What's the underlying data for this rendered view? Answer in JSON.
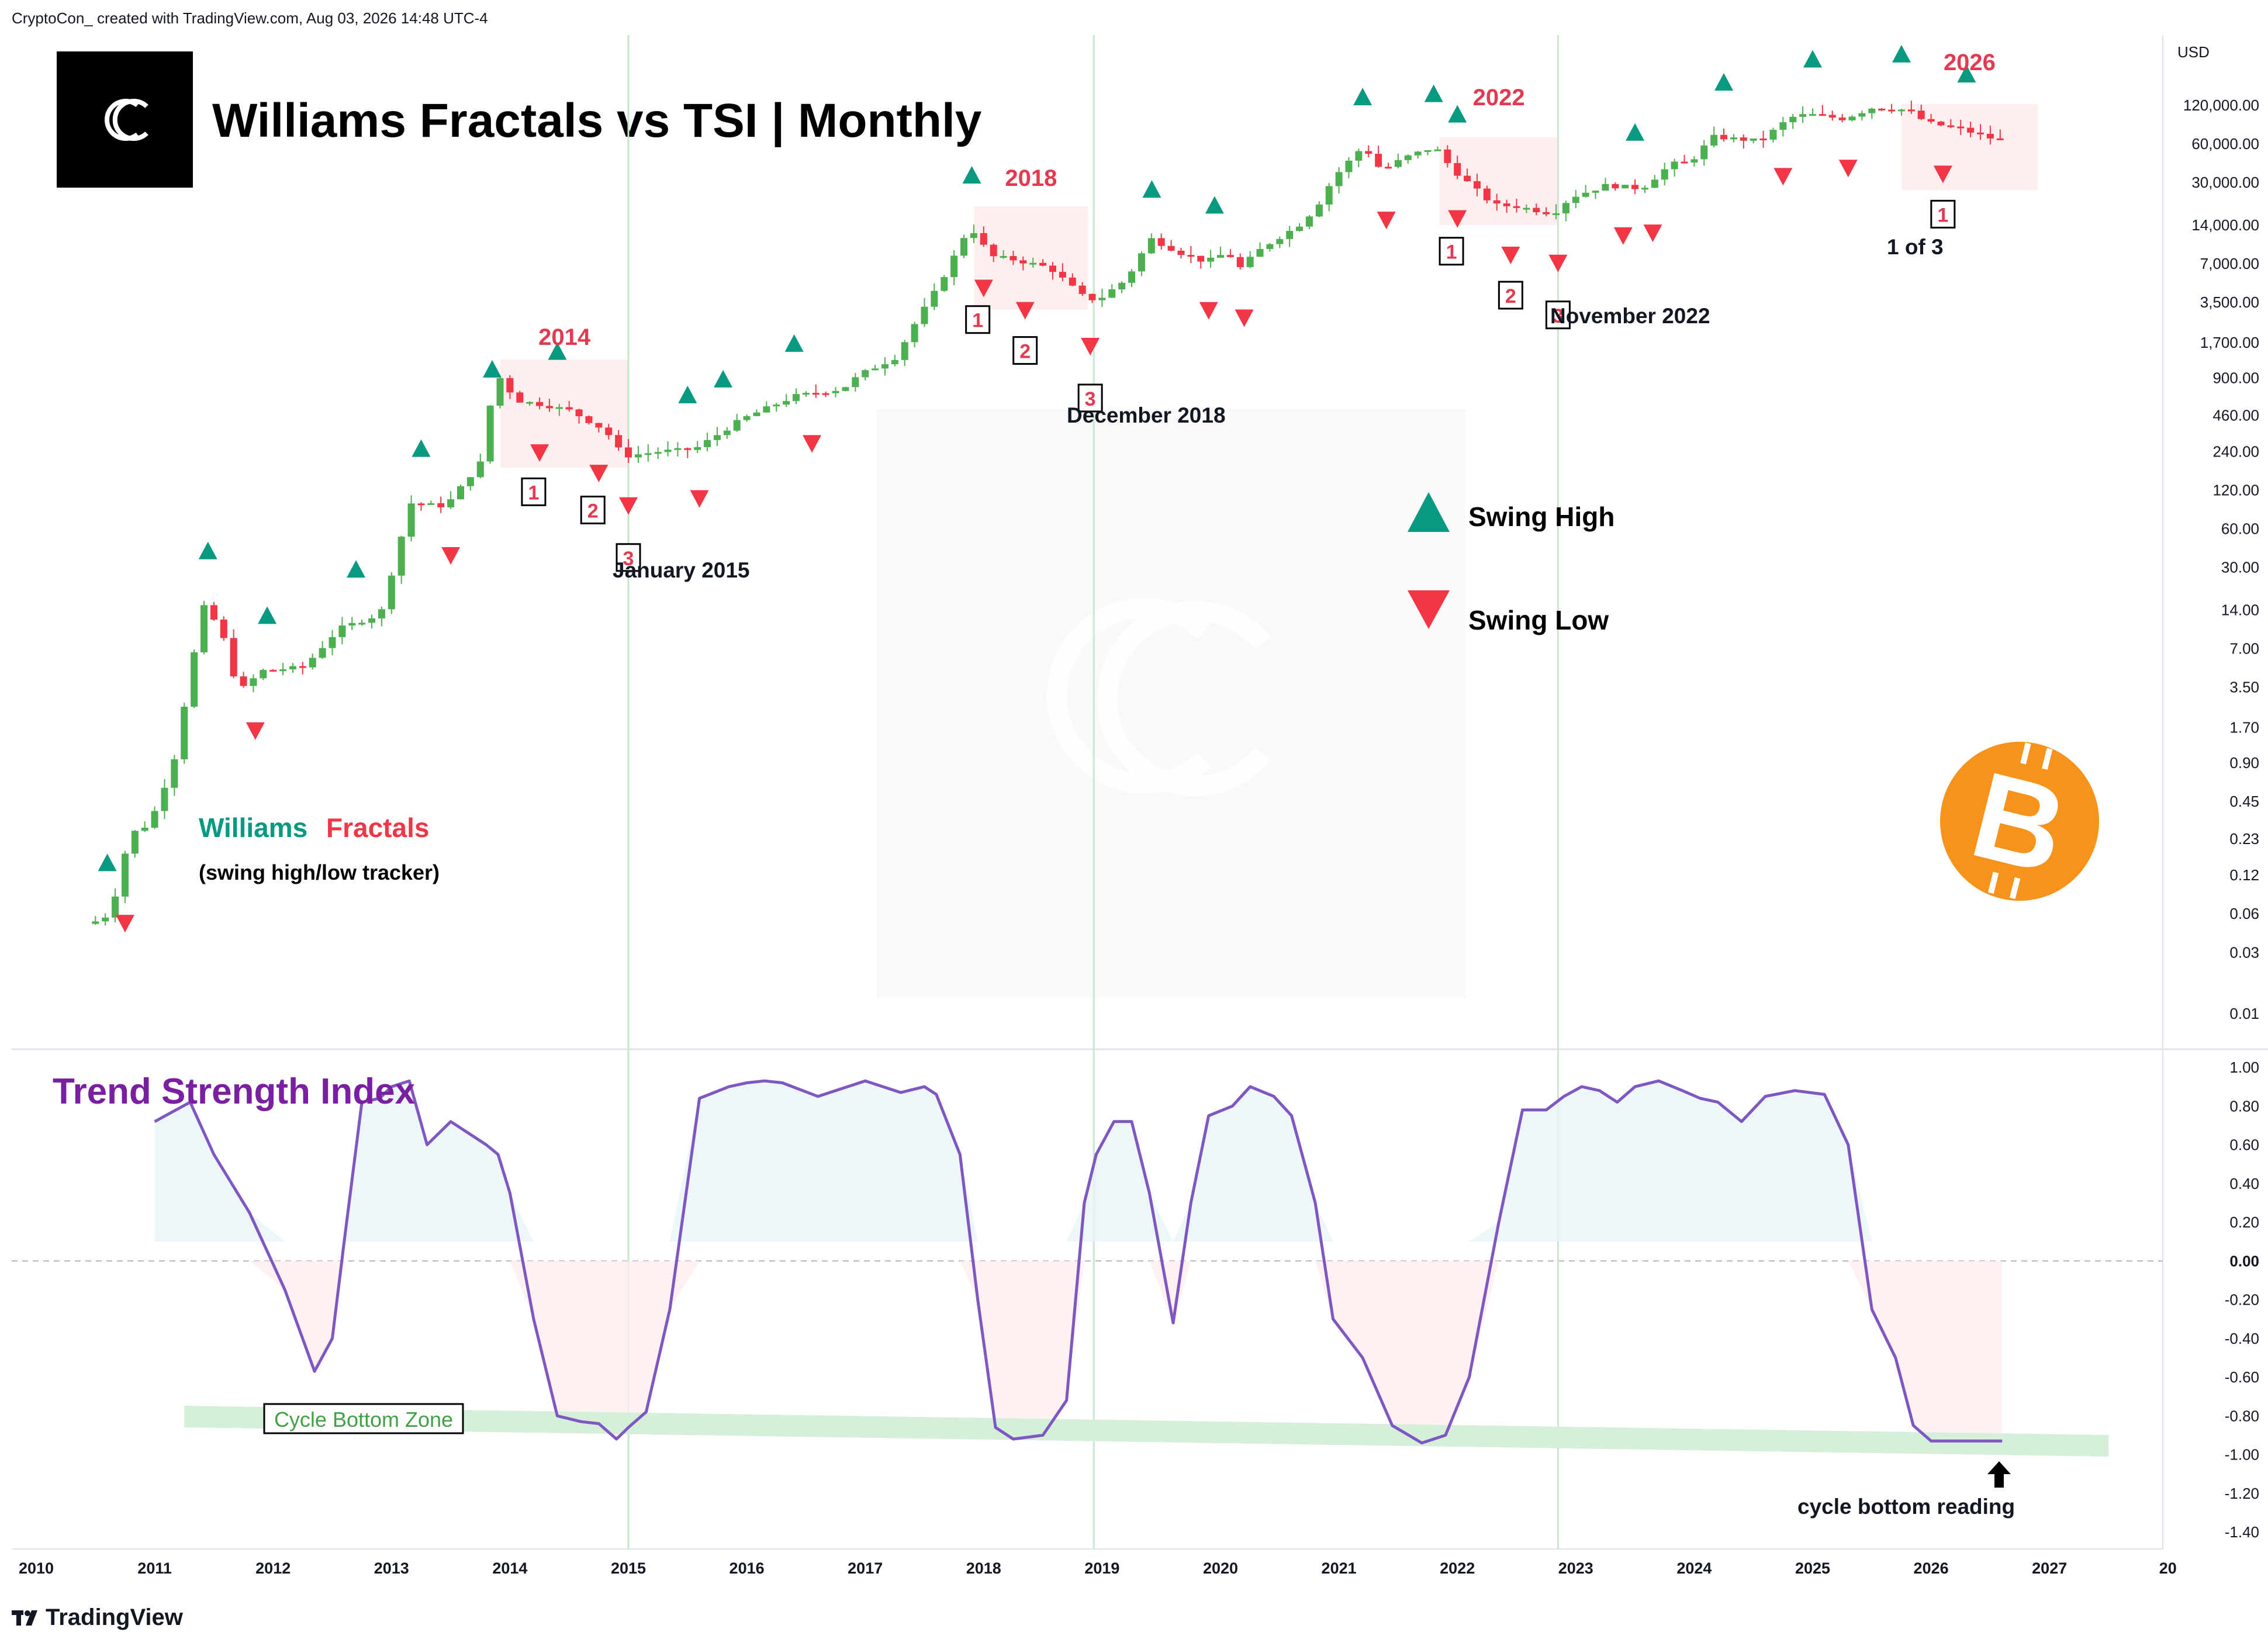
{
  "header": {
    "attribution": "CryptoCon_ created with TradingView.com, Aug 03, 2026 14:48 UTC-4"
  },
  "title": "Williams Fractals vs TSI | Monthly",
  "branding": {
    "footer": "TradingView",
    "watermark_icon": "cryptocon-logo-icon",
    "coin_icon": "bitcoin-icon"
  },
  "colors": {
    "up": "#4caf50",
    "down": "#f23645",
    "swing_high": "#089981",
    "swing_low": "#f23645",
    "tsi_line": "#7e57c2",
    "tsi_title": "#7b1fa2",
    "year_label": "#e53950",
    "bottom_zone": "#d6efd9",
    "bitcoin": "#f7931a"
  },
  "chart_data": [
    {
      "type": "candlestick",
      "title": "Williams Fractals vs TSI | Monthly",
      "y_scale": "log",
      "y_unit": "USD",
      "y_ticks": [
        "120,000.00",
        "60,000.00",
        "30,000.00",
        "14,000.00",
        "7,000.00",
        "3,500.00",
        "1,700.00",
        "900.00",
        "460.00",
        "240.00",
        "120.00",
        "60.00",
        "30.00",
        "14.00",
        "7.00",
        "3.50",
        "1.70",
        "0.90",
        "0.45",
        "0.23",
        "0.12",
        "0.06",
        "0.03",
        "0.01"
      ],
      "x_ticks": [
        "2010",
        "2011",
        "2012",
        "2013",
        "2014",
        "2015",
        "2016",
        "2017",
        "2018",
        "2019",
        "2020",
        "2021",
        "2022",
        "2023",
        "2024",
        "2025",
        "2026",
        "2027",
        "20"
      ],
      "price_keypoints": [
        [
          2010.5,
          0.05
        ],
        [
          2010.67,
          0.06
        ],
        [
          2010.83,
          0.25
        ],
        [
          2011.0,
          0.3
        ],
        [
          2011.2,
          0.9
        ],
        [
          2011.45,
          15
        ],
        [
          2011.6,
          10
        ],
        [
          2011.75,
          3.2
        ],
        [
          2011.95,
          4.7
        ],
        [
          2012.3,
          5
        ],
        [
          2012.6,
          10
        ],
        [
          2012.95,
          13
        ],
        [
          2013.2,
          95
        ],
        [
          2013.5,
          90
        ],
        [
          2013.8,
          200
        ],
        [
          2013.92,
          1000
        ],
        [
          2014.1,
          600
        ],
        [
          2014.35,
          550
        ],
        [
          2014.55,
          500
        ],
        [
          2014.85,
          350
        ],
        [
          2015.0,
          220
        ],
        [
          2015.3,
          240
        ],
        [
          2015.6,
          250
        ],
        [
          2015.85,
          350
        ],
        [
          2016.0,
          430
        ],
        [
          2016.45,
          650
        ],
        [
          2016.85,
          740
        ],
        [
          2017.0,
          960
        ],
        [
          2017.3,
          1300
        ],
        [
          2017.45,
          2300
        ],
        [
          2017.65,
          4500
        ],
        [
          2017.85,
          10000
        ],
        [
          2017.92,
          14000
        ],
        [
          2018.1,
          8000
        ],
        [
          2018.3,
          7500
        ],
        [
          2018.6,
          6500
        ],
        [
          2018.88,
          3900
        ],
        [
          2019.0,
          3600
        ],
        [
          2019.25,
          5300
        ],
        [
          2019.45,
          11000
        ],
        [
          2019.7,
          8500
        ],
        [
          2019.92,
          7200
        ],
        [
          2020.1,
          8600
        ],
        [
          2020.2,
          6400
        ],
        [
          2020.4,
          9400
        ],
        [
          2020.7,
          13800
        ],
        [
          2020.85,
          19000
        ],
        [
          2021.0,
          33000
        ],
        [
          2021.25,
          58000
        ],
        [
          2021.4,
          37000
        ],
        [
          2021.6,
          47000
        ],
        [
          2021.85,
          57000
        ],
        [
          2022.0,
          38000
        ],
        [
          2022.35,
          20000
        ],
        [
          2022.55,
          19500
        ],
        [
          2022.85,
          17100
        ],
        [
          2023.0,
          23000
        ],
        [
          2023.3,
          28500
        ],
        [
          2023.6,
          26900
        ],
        [
          2023.85,
          42000
        ],
        [
          2024.0,
          42500
        ],
        [
          2024.2,
          68000
        ],
        [
          2024.6,
          63000
        ],
        [
          2024.85,
          96000
        ],
        [
          2025.0,
          102000
        ],
        [
          2025.3,
          94000
        ],
        [
          2025.55,
          115000
        ],
        [
          2025.85,
          110000
        ],
        [
          2026.0,
          88000
        ],
        [
          2026.3,
          78000
        ],
        [
          2026.58,
          65000
        ]
      ],
      "swing_highs": [
        2010.6,
        2011.45,
        2011.95,
        2012.7,
        2013.25,
        2013.85,
        2014.4,
        2015.5,
        2015.8,
        2016.4,
        2017.9,
        2019.42,
        2019.95,
        2021.2,
        2021.8,
        2022.0,
        2023.5,
        2024.25,
        2025.0,
        2025.75,
        2026.3
      ],
      "swing_lows": [
        2010.75,
        2011.85,
        2013.5,
        2014.25,
        2014.75,
        2015.0,
        2015.6,
        2016.55,
        2018.0,
        2018.35,
        2018.9,
        2019.9,
        2020.2,
        2021.4,
        2022.0,
        2022.45,
        2022.85,
        2023.4,
        2023.65,
        2024.75,
        2025.3,
        2026.1
      ],
      "highlight_years": [
        {
          "label": "2014",
          "x0": 2013.92,
          "x1": 2015.0
        },
        {
          "label": "2018",
          "x0": 2017.92,
          "x1": 2018.88
        },
        {
          "label": "2022",
          "x0": 2021.85,
          "x1": 2022.85
        },
        {
          "label": "2026",
          "x0": 2025.75,
          "x1": 2026.9
        }
      ],
      "numbered_markers": [
        {
          "label": "1",
          "x": 2014.2
        },
        {
          "label": "2",
          "x": 2014.7
        },
        {
          "label": "3",
          "x": 2015.0
        },
        {
          "label": "1",
          "x": 2017.95
        },
        {
          "label": "2",
          "x": 2018.35
        },
        {
          "label": "3",
          "x": 2018.9
        },
        {
          "label": "1",
          "x": 2021.95
        },
        {
          "label": "2",
          "x": 2022.45
        },
        {
          "label": "3",
          "x": 2022.85
        },
        {
          "label": "1",
          "x": 2026.1
        }
      ],
      "annotations": [
        "January 2015",
        "December 2018",
        "November 2022",
        "1 of 3",
        "Williams",
        "Fractals",
        "(swing high/low tracker)"
      ],
      "legend": {
        "high": "Swing High",
        "low": "Swing Low"
      }
    },
    {
      "type": "line",
      "title": "Trend Strength Index",
      "ylim": [
        -1.4,
        1.0
      ],
      "y_ticks": [
        "1.00",
        "0.80",
        "0.60",
        "0.40",
        "0.20",
        "0.00",
        "-0.20",
        "-0.40",
        "-0.60",
        "-0.80",
        "-1.00",
        "-1.20",
        "-1.40"
      ],
      "x": [
        2011.0,
        2011.3,
        2011.5,
        2011.8,
        2012.1,
        2012.35,
        2012.5,
        2012.6,
        2012.75,
        2012.9,
        2013.0,
        2013.15,
        2013.3,
        2013.5,
        2013.8,
        2013.9,
        2014.0,
        2014.2,
        2014.4,
        2014.6,
        2014.75,
        2014.9,
        2015.0,
        2015.15,
        2015.35,
        2015.6,
        2015.85,
        2016.0,
        2016.15,
        2016.3,
        2016.6,
        2017.0,
        2017.3,
        2017.5,
        2017.6,
        2017.8,
        2017.95,
        2018.1,
        2018.25,
        2018.5,
        2018.7,
        2018.85,
        2018.95,
        2019.1,
        2019.25,
        2019.4,
        2019.6,
        2019.75,
        2019.9,
        2020.1,
        2020.25,
        2020.45,
        2020.6,
        2020.8,
        2020.95,
        2021.2,
        2021.45,
        2021.7,
        2021.9,
        2022.1,
        2022.35,
        2022.55,
        2022.75,
        2022.9,
        2023.05,
        2023.2,
        2023.35,
        2023.5,
        2023.7,
        2023.9,
        2024.05,
        2024.2,
        2024.4,
        2024.6,
        2024.85,
        2025.1,
        2025.3,
        2025.5,
        2025.7,
        2025.85,
        2026.0,
        2026.15,
        2026.3,
        2026.45,
        2026.6
      ],
      "y": [
        0.72,
        0.82,
        0.55,
        0.25,
        -0.15,
        -0.57,
        -0.4,
        0.1,
        0.82,
        0.84,
        0.9,
        0.93,
        0.6,
        0.72,
        0.6,
        0.55,
        0.35,
        -0.3,
        -0.8,
        -0.83,
        -0.84,
        -0.92,
        -0.86,
        -0.78,
        -0.25,
        0.84,
        0.9,
        0.92,
        0.93,
        0.92,
        0.85,
        0.93,
        0.87,
        0.9,
        0.86,
        0.55,
        -0.2,
        -0.86,
        -0.92,
        -0.9,
        -0.72,
        0.3,
        0.55,
        0.72,
        0.72,
        0.35,
        -0.32,
        0.3,
        0.75,
        0.8,
        0.9,
        0.85,
        0.75,
        0.3,
        -0.3,
        -0.5,
        -0.85,
        -0.94,
        -0.9,
        -0.6,
        0.2,
        0.78,
        0.78,
        0.85,
        0.9,
        0.88,
        0.82,
        0.9,
        0.93,
        0.88,
        0.84,
        0.82,
        0.72,
        0.85,
        0.88,
        0.86,
        0.6,
        -0.25,
        -0.5,
        -0.85,
        -0.93,
        -0.93,
        -0.93,
        -0.93,
        -0.93
      ],
      "annotations": [
        "Cycle Bottom Zone",
        "cycle bottom reading"
      ]
    }
  ]
}
